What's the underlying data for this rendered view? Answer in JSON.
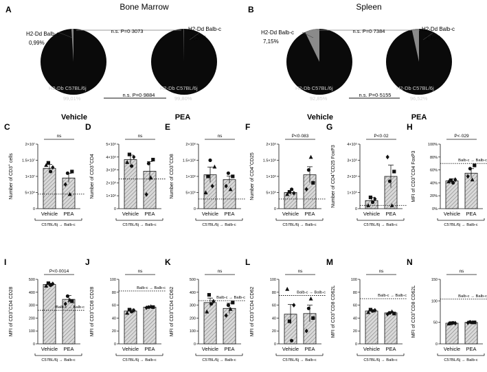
{
  "figure": {
    "sections": [
      {
        "letter": "A",
        "title": "Bone Marrow"
      },
      {
        "letter": "B",
        "title": "Spleen"
      }
    ],
    "group_labels": [
      "Vehicle",
      "PEA"
    ],
    "donor_label": "H2-Dd Balb-c",
    "host_label": "H2-Db C57BL/6j",
    "transfer_label": "C57BL/6j → Balb-c",
    "reference_label": "Balb-c → Balb-c"
  },
  "chart_data": [
    {
      "type": "pie",
      "panel": "A",
      "title": "Bone Marrow",
      "pies": [
        {
          "name": "Vehicle",
          "slices": [
            {
              "label": "H2-Dd Balb-c",
              "value": 0.99,
              "text": "0,99%"
            },
            {
              "label": "H2-Db C57BL/6j",
              "value": 99.01,
              "text": "99,01%"
            }
          ]
        },
        {
          "name": "PEA",
          "slices": [
            {
              "label": "H2-Dd Balb-c",
              "value": 0.2,
              "text": "0,20%"
            },
            {
              "label": "H2-Db C57BL/6j",
              "value": 99.8,
              "text": "99,80%"
            }
          ]
        }
      ],
      "comparisons": [
        "n.s. P=0·3073",
        "n.s. P=0·9884"
      ]
    },
    {
      "type": "pie",
      "panel": "B",
      "title": "Spleen",
      "pies": [
        {
          "name": "Vehicle",
          "slices": [
            {
              "label": "H2-Dd Balb-c",
              "value": 7.15,
              "text": "7,15%"
            },
            {
              "label": "H2-Db C57BL/6j",
              "value": 92.85,
              "text": "92,85%"
            }
          ]
        },
        {
          "name": "PEA",
          "slices": [
            {
              "label": "H2-Dd Balb-c",
              "value": 3.48,
              "text": "3,48%"
            },
            {
              "label": "H2-Db C57BL/6j",
              "value": 96.52,
              "text": "96,52%"
            }
          ]
        }
      ],
      "comparisons": [
        "n.s. P=0·7384",
        "n.s. P=0·5155"
      ]
    },
    {
      "type": "bar",
      "panel": "C",
      "ylabel_main": "Number of CD3",
      "ylabel_sup": "+",
      "ylabel_tail": " cells",
      "ylim": [
        0,
        20000000
      ],
      "yticks": [
        {
          "v": 0,
          "t": "0"
        },
        {
          "v": 5000000,
          "t": "5×10⁶"
        },
        {
          "v": 10000000,
          "t": "1×10⁷"
        },
        {
          "v": 15000000,
          "t": "1.5×10⁷"
        },
        {
          "v": 20000000,
          "t": "2×10⁷"
        }
      ],
      "categories": [
        "Vehicle",
        "PEA"
      ],
      "values": [
        12500000,
        9500000
      ],
      "errors": [
        1200000,
        1400000
      ],
      "points": [
        [
          13500000,
          14200000,
          11500000,
          12800000
        ],
        [
          7500000,
          11000000,
          4500000,
          11500000
        ]
      ],
      "reference": 4500000,
      "reference_label": "",
      "significance": "ns"
    },
    {
      "type": "bar",
      "panel": "D",
      "ylabel_main": "Number of CD3",
      "ylabel_sup": "+",
      "ylabel_tail": "CD4",
      "ylim": [
        0,
        5000000
      ],
      "yticks": [
        {
          "v": 0,
          "t": "0"
        },
        {
          "v": 1000000,
          "t": "1×10⁶"
        },
        {
          "v": 2000000,
          "t": "2×10⁶"
        },
        {
          "v": 3000000,
          "t": "3×10⁶"
        },
        {
          "v": 4000000,
          "t": "4×10⁶"
        },
        {
          "v": 5000000,
          "t": "5×10⁶"
        }
      ],
      "categories": [
        "Vehicle",
        "PEA"
      ],
      "values": [
        3800000,
        2900000
      ],
      "errors": [
        350000,
        750000
      ],
      "points": [
        [
          3600000,
          4200000,
          3300000,
          4000000
        ],
        [
          1100000,
          3500000,
          2400000,
          3800000
        ]
      ],
      "reference": 2300000,
      "reference_label": "",
      "significance": "ns"
    },
    {
      "type": "bar",
      "panel": "E",
      "ylabel_main": "Number of CD3",
      "ylabel_sup": "+",
      "ylabel_tail": "CD8",
      "ylim": [
        0,
        2000000
      ],
      "yticks": [
        {
          "v": 0,
          "t": "0"
        },
        {
          "v": 500000,
          "t": "5×10⁵"
        },
        {
          "v": 1000000,
          "t": "1×10⁶"
        },
        {
          "v": 1500000,
          "t": "1.5×10⁶"
        },
        {
          "v": 2000000,
          "t": "2×10⁶"
        }
      ],
      "categories": [
        "Vehicle",
        "PEA"
      ],
      "values": [
        1050000,
        900000
      ],
      "errors": [
        240000,
        110000
      ],
      "points": [
        [
          500000,
          1000000,
          1500000,
          700000,
          1300000
        ],
        [
          700000,
          1100000,
          600000,
          1000000
        ]
      ],
      "reference": 300000,
      "reference_label": "",
      "significance": "ns"
    },
    {
      "type": "bar",
      "panel": "F",
      "ylabel_main": "Number of CD4",
      "ylabel_sup": "+",
      "ylabel_tail": "CD25",
      "ylim": [
        0,
        2000000
      ],
      "yticks": [
        {
          "v": 0,
          "t": "0"
        },
        {
          "v": 500000,
          "t": "5×10⁵"
        },
        {
          "v": 1000000,
          "t": "1×10⁶"
        },
        {
          "v": 1500000,
          "t": "1.5×10⁶"
        },
        {
          "v": 2000000,
          "t": "2×10⁶"
        }
      ],
      "categories": [
        "Vehicle",
        "PEA"
      ],
      "values": [
        500000,
        1050000
      ],
      "errors": [
        60000,
        250000
      ],
      "points": [
        [
          450000,
          520000,
          600000,
          480000
        ],
        [
          600000,
          1200000,
          1600000,
          800000
        ]
      ],
      "reference": 300000,
      "reference_label": "",
      "significance": "P<0·083"
    },
    {
      "type": "bar",
      "panel": "G",
      "ylabel_main": "Number of CD4",
      "ylabel_sup": "+",
      "ylabel_tail": "CD25 FoxP3",
      "ylim": [
        0,
        400000
      ],
      "yticks": [
        {
          "v": 0,
          "t": "0"
        },
        {
          "v": 100000,
          "t": "1×10⁵"
        },
        {
          "v": 200000,
          "t": "2×10⁵"
        },
        {
          "v": 300000,
          "t": "3×10⁵"
        },
        {
          "v": 400000,
          "t": "4×10⁵"
        }
      ],
      "categories": [
        "Vehicle",
        "PEA"
      ],
      "values": [
        50000,
        200000
      ],
      "errors": [
        20000,
        70000
      ],
      "points": [
        [
          20000,
          70000,
          40000,
          60000
        ],
        [
          320000,
          170000,
          20000,
          230000
        ]
      ],
      "reference": 20000,
      "reference_label": "",
      "significance": "P<0·02"
    },
    {
      "type": "bar",
      "panel": "H",
      "ylabel_main": "MFI of CD3",
      "ylabel_sup": "+",
      "ylabel_tail": "CD4 FoxP3",
      "ylim": [
        0,
        100
      ],
      "yticks": [
        {
          "v": 0,
          "t": "0%"
        },
        {
          "v": 20,
          "t": "20%"
        },
        {
          "v": 40,
          "t": "40%"
        },
        {
          "v": 60,
          "t": "60%"
        },
        {
          "v": 80,
          "t": "80%"
        },
        {
          "v": 100,
          "t": "100%"
        }
      ],
      "categories": [
        "Vehicle",
        "PEA"
      ],
      "values": [
        43,
        55
      ],
      "errors": [
        3,
        7
      ],
      "points": [
        [
          42,
          44,
          40,
          45
        ],
        [
          50,
          62,
          45,
          67
        ]
      ],
      "reference": 70,
      "reference_label": "Balb-c → Balb-c",
      "significance": "P<·029"
    },
    {
      "type": "bar",
      "panel": "I",
      "ylabel_main": "MFI of CD3",
      "ylabel_sup": "+",
      "ylabel_tail": "CD4 CD28",
      "ylim": [
        0,
        500
      ],
      "yticks": [
        {
          "v": 0,
          "t": "0"
        },
        {
          "v": 100,
          "t": "100"
        },
        {
          "v": 200,
          "t": "200"
        },
        {
          "v": 300,
          "t": "300"
        },
        {
          "v": 400,
          "t": "400"
        },
        {
          "v": 500,
          "t": "500"
        }
      ],
      "categories": [
        "Vehicle",
        "PEA"
      ],
      "values": [
        460,
        345
      ],
      "errors": [
        10,
        30
      ],
      "points": [
        [
          450,
          470,
          455,
          465
        ],
        [
          310,
          370,
          340,
          330
        ]
      ],
      "reference": 260,
      "reference_label": "Balb-c → Balb-c",
      "significance": "P<0·0014"
    },
    {
      "type": "bar",
      "panel": "J",
      "ylabel_main": "MFI of CD3",
      "ylabel_sup": "+",
      "ylabel_tail": "CD8 CD28",
      "ylim": [
        0,
        100
      ],
      "yticks": [
        {
          "v": 0,
          "t": "0"
        },
        {
          "v": 20,
          "t": "20"
        },
        {
          "v": 40,
          "t": "40"
        },
        {
          "v": 60,
          "t": "60"
        },
        {
          "v": 80,
          "t": "80"
        },
        {
          "v": 100,
          "t": "100"
        }
      ],
      "categories": [
        "Vehicle",
        "PEA"
      ],
      "values": [
        51,
        57
      ],
      "errors": [
        3,
        1
      ],
      "points": [
        [
          48,
          53,
          50,
          52
        ],
        [
          56,
          57,
          58,
          57
        ]
      ],
      "reference": 82,
      "reference_label": "Balb-c → Balb-c",
      "significance": "ns"
    },
    {
      "type": "bar",
      "panel": "K",
      "ylabel_main": "MFI of CD3",
      "ylabel_sup": "+",
      "ylabel_tail": "CD4 CD62",
      "ylim": [
        0,
        500
      ],
      "yticks": [
        {
          "v": 0,
          "t": "0"
        },
        {
          "v": 100,
          "t": "100"
        },
        {
          "v": 200,
          "t": "200"
        },
        {
          "v": 300,
          "t": "300"
        },
        {
          "v": 400,
          "t": "400"
        },
        {
          "v": 500,
          "t": "500"
        }
      ],
      "categories": [
        "Vehicle",
        "PEA"
      ],
      "values": [
        320,
        275
      ],
      "errors": [
        35,
        40
      ],
      "points": [
        [
          250,
          380,
          310,
          330
        ],
        [
          220,
          300,
          270,
          320
        ]
      ],
      "reference": 335,
      "reference_label": "Balb-c → Balb-c",
      "significance": "ns"
    },
    {
      "type": "bar",
      "panel": "L",
      "ylabel_main": "MFI of CD3",
      "ylabel_sup": "+",
      "ylabel_tail": "CD4 CD62",
      "ylim": [
        0,
        100
      ],
      "yticks": [
        {
          "v": 0,
          "t": "0"
        },
        {
          "v": 20,
          "t": "20"
        },
        {
          "v": 40,
          "t": "40"
        },
        {
          "v": 60,
          "t": "60"
        },
        {
          "v": 80,
          "t": "80"
        },
        {
          "v": 100,
          "t": "100"
        }
      ],
      "categories": [
        "Vehicle",
        "PEA"
      ],
      "values": [
        46,
        47
      ],
      "errors": [
        15,
        13
      ],
      "points": [
        [
          85,
          35,
          5,
          60
        ],
        [
          20,
          55,
          70,
          40
        ]
      ],
      "reference": 75,
      "reference_label": "Balb-c → Balb-c",
      "significance": "ns"
    },
    {
      "type": "bar",
      "panel": "M",
      "ylabel_main": "MFI of CD3",
      "ylabel_sup": "+",
      "ylabel_tail": "CD8 CD62L",
      "ylim": [
        0,
        100
      ],
      "yticks": [
        {
          "v": 0,
          "t": "0"
        },
        {
          "v": 20,
          "t": "20"
        },
        {
          "v": 40,
          "t": "40"
        },
        {
          "v": 60,
          "t": "60"
        },
        {
          "v": 80,
          "t": "80"
        },
        {
          "v": 100,
          "t": "100"
        }
      ],
      "categories": [
        "Vehicle",
        "PEA"
      ],
      "values": [
        51,
        48
      ],
      "errors": [
        2,
        2
      ],
      "points": [
        [
          49,
          53,
          51,
          52
        ],
        [
          46,
          48,
          50,
          47
        ]
      ],
      "reference": 70,
      "reference_label": "Balb-c → Balb-c",
      "significance": "ns"
    },
    {
      "type": "bar",
      "panel": "N",
      "ylabel_main": "MFI of CD3",
      "ylabel_sup": "+",
      "ylabel_tail": "CD8 CD62L",
      "ylim": [
        0,
        150
      ],
      "yticks": [
        {
          "v": 0,
          "t": "0"
        },
        {
          "v": 50,
          "t": "50"
        },
        {
          "v": 100,
          "t": "100"
        },
        {
          "v": 150,
          "t": "150"
        }
      ],
      "categories": [
        "Vehicle",
        "PEA"
      ],
      "values": [
        48,
        50
      ],
      "errors": [
        1,
        1
      ],
      "points": [
        [
          47,
          48,
          49,
          48
        ],
        [
          49,
          51,
          50,
          50
        ]
      ],
      "reference": 104,
      "reference_label": "Balb-c → Balb-c",
      "significance": "ns"
    }
  ]
}
